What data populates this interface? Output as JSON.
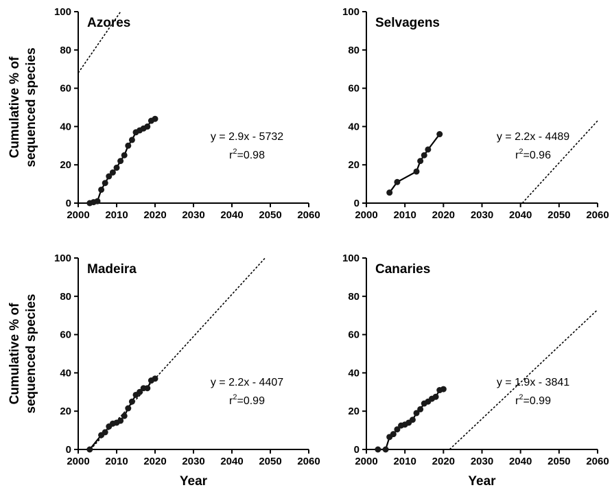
{
  "chart_data": [
    {
      "type": "line",
      "title": "Azores",
      "xlabel": "",
      "ylabel": "Cumulative % of sequenced species",
      "ylabel_lines": [
        "Cumulative % of",
        "sequenced species"
      ],
      "xlim": [
        2000,
        2060
      ],
      "ylim": [
        0,
        100
      ],
      "xticks": [
        2000,
        2010,
        2020,
        2030,
        2040,
        2050,
        2060
      ],
      "yticks": [
        0,
        20,
        40,
        60,
        80,
        100
      ],
      "equation": "y = 2.9x - 5732",
      "r2_prefix": "r",
      "r2_sup": "2",
      "r2_value": "=0.98",
      "x": [
        2003,
        2004,
        2005,
        2006,
        2007,
        2008,
        2009,
        2010,
        2011,
        2012,
        2013,
        2014,
        2015,
        2016,
        2017,
        2018,
        2019,
        2020
      ],
      "y": [
        0,
        0.5,
        1,
        7,
        10.5,
        14,
        16,
        18.5,
        22,
        25,
        30,
        33,
        37,
        38,
        39,
        40,
        43,
        44
      ],
      "trend": {
        "slope": 2.9,
        "intercept": -5732
      }
    },
    {
      "type": "line",
      "title": "Selvagens",
      "xlabel": "",
      "ylabel": "",
      "ylabel_lines": [],
      "xlim": [
        2000,
        2060
      ],
      "ylim": [
        0,
        100
      ],
      "xticks": [
        2000,
        2010,
        2020,
        2030,
        2040,
        2050,
        2060
      ],
      "yticks": [
        0,
        20,
        40,
        60,
        80,
        100
      ],
      "equation": "y = 2.2x - 4489",
      "r2_prefix": "r",
      "r2_sup": "2",
      "r2_value": "=0.96",
      "x": [
        2006,
        2008,
        2013,
        2014,
        2015,
        2016,
        2019
      ],
      "y": [
        5.5,
        11,
        16.5,
        22,
        25,
        28,
        36
      ],
      "trend": {
        "slope": 2.2,
        "intercept": -4489
      }
    },
    {
      "type": "line",
      "title": "Madeira",
      "xlabel": "Year",
      "ylabel": "Cumulative % of sequenced species",
      "ylabel_lines": [
        "Cumulative % of",
        "sequenced species"
      ],
      "xlim": [
        2000,
        2060
      ],
      "ylim": [
        0,
        100
      ],
      "xticks": [
        2000,
        2010,
        2020,
        2030,
        2040,
        2050,
        2060
      ],
      "yticks": [
        0,
        20,
        40,
        60,
        80,
        100
      ],
      "equation": "y = 2.2x - 4407",
      "r2_prefix": "r",
      "r2_sup": "2",
      "r2_value": "=0.99",
      "x": [
        2003,
        2006,
        2007,
        2008,
        2009,
        2010,
        2011,
        2012,
        2013,
        2014,
        2015,
        2016,
        2017,
        2018,
        2019,
        2020
      ],
      "y": [
        0,
        7.5,
        9,
        12,
        13.5,
        14,
        15,
        17.5,
        21.5,
        25,
        28.5,
        30,
        32,
        32,
        36,
        37
      ],
      "trend": {
        "slope": 2.2,
        "intercept": -4407
      }
    },
    {
      "type": "line",
      "title": "Canaries",
      "xlabel": "Year",
      "ylabel": "",
      "ylabel_lines": [],
      "xlim": [
        2000,
        2060
      ],
      "ylim": [
        0,
        100
      ],
      "xticks": [
        2000,
        2010,
        2020,
        2030,
        2040,
        2050,
        2060
      ],
      "yticks": [
        0,
        20,
        40,
        60,
        80,
        100
      ],
      "equation": "y = 1.9x - 3841",
      "r2_prefix": "r",
      "r2_sup": "2",
      "r2_value": "=0.99",
      "x": [
        2003,
        2005,
        2006,
        2007,
        2008,
        2009,
        2010,
        2011,
        2012,
        2013,
        2014,
        2015,
        2016,
        2017,
        2018,
        2019,
        2020
      ],
      "y": [
        0,
        0,
        6.5,
        8,
        10.5,
        12.5,
        13,
        14,
        15.5,
        19,
        21,
        24,
        25,
        26.5,
        27.5,
        31,
        31.5
      ],
      "trend": {
        "slope": 1.9,
        "intercept": -3841
      }
    }
  ]
}
